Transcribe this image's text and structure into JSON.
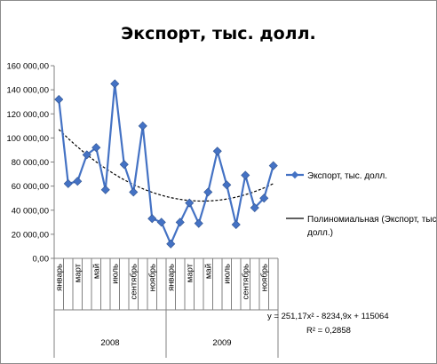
{
  "chart_data": {
    "type": "line",
    "title": "Экспорт, тыс. долл.",
    "xlabel": "",
    "ylabel": "",
    "ylim": [
      0,
      160000
    ],
    "y_ticks": [
      "0,00",
      "20 000,00",
      "40 000,00",
      "60 000,00",
      "80 000,00",
      "100 000,00",
      "120 000,00",
      "140 000,00",
      "160 000,00"
    ],
    "y_tick_values": [
      0,
      20000,
      40000,
      60000,
      80000,
      100000,
      120000,
      140000,
      160000
    ],
    "grid": false,
    "x_tick_labels": [
      "январь",
      "",
      "март",
      "",
      "май",
      "",
      "июль",
      "",
      "сентябрь",
      "",
      "ноябрь",
      "",
      "январь",
      "",
      "март",
      "",
      "май",
      "",
      "июль",
      "",
      "сентябрь",
      "",
      "ноябрь",
      ""
    ],
    "year_groups": [
      {
        "label": "2008",
        "start": 0,
        "end": 11
      },
      {
        "label": "2009",
        "start": 12,
        "end": 23
      }
    ],
    "series": [
      {
        "name": "Экспорт, тыс. долл.",
        "color": "#4472c4",
        "marker": "diamond",
        "values": [
          132000,
          62000,
          64000,
          86000,
          92000,
          57000,
          145000,
          78000,
          55000,
          110000,
          33000,
          30000,
          12000,
          30000,
          46000,
          29000,
          55000,
          89000,
          61000,
          28000,
          69000,
          42000,
          50000,
          77000
        ]
      }
    ],
    "trendline": {
      "name": "Полиномиальная (Экспорт, тыс. долл.)",
      "type": "polynomial",
      "order": 2,
      "color": "#000000",
      "equation": "y = 251,17x² - 8234,9x + 115064",
      "r_squared": "R² = 0,2858",
      "coefficients": [
        251.17,
        -8234.9,
        115064
      ]
    },
    "legend_position": "right"
  }
}
